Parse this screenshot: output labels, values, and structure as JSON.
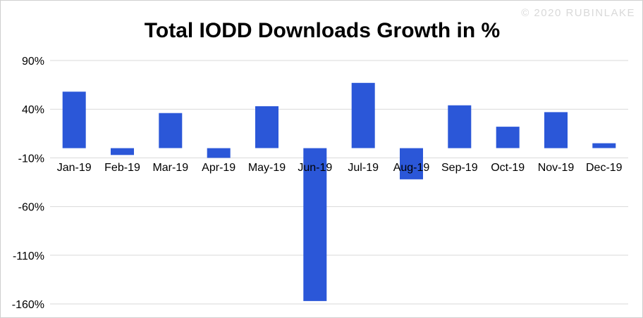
{
  "watermark": "© 2020 RUBINLAKE",
  "colors": {
    "bar": "#2b57d8",
    "grid": "#d9d9d9",
    "watermark": "#d9d9d9"
  },
  "chart_data": {
    "type": "bar",
    "title": "Total IODD Downloads Growth in %",
    "xlabel": "",
    "ylabel": "",
    "categories": [
      "Jan-19",
      "Feb-19",
      "Mar-19",
      "Apr-19",
      "May-19",
      "Jun-19",
      "Jul-19",
      "Aug-19",
      "Sep-19",
      "Oct-19",
      "Nov-19",
      "Dec-19"
    ],
    "series": [
      {
        "values": [
          58,
          -7,
          36,
          -10,
          43,
          -157,
          67,
          -32,
          44,
          22,
          37,
          5
        ]
      }
    ],
    "yticks": [
      90,
      40,
      -10,
      -60,
      -110,
      -160
    ],
    "ytick_labels": [
      "90%",
      "40%",
      "-10%",
      "-60%",
      "-110%",
      "-160%"
    ],
    "ylim": [
      -160,
      90
    ],
    "grid": true,
    "legend": "none"
  }
}
